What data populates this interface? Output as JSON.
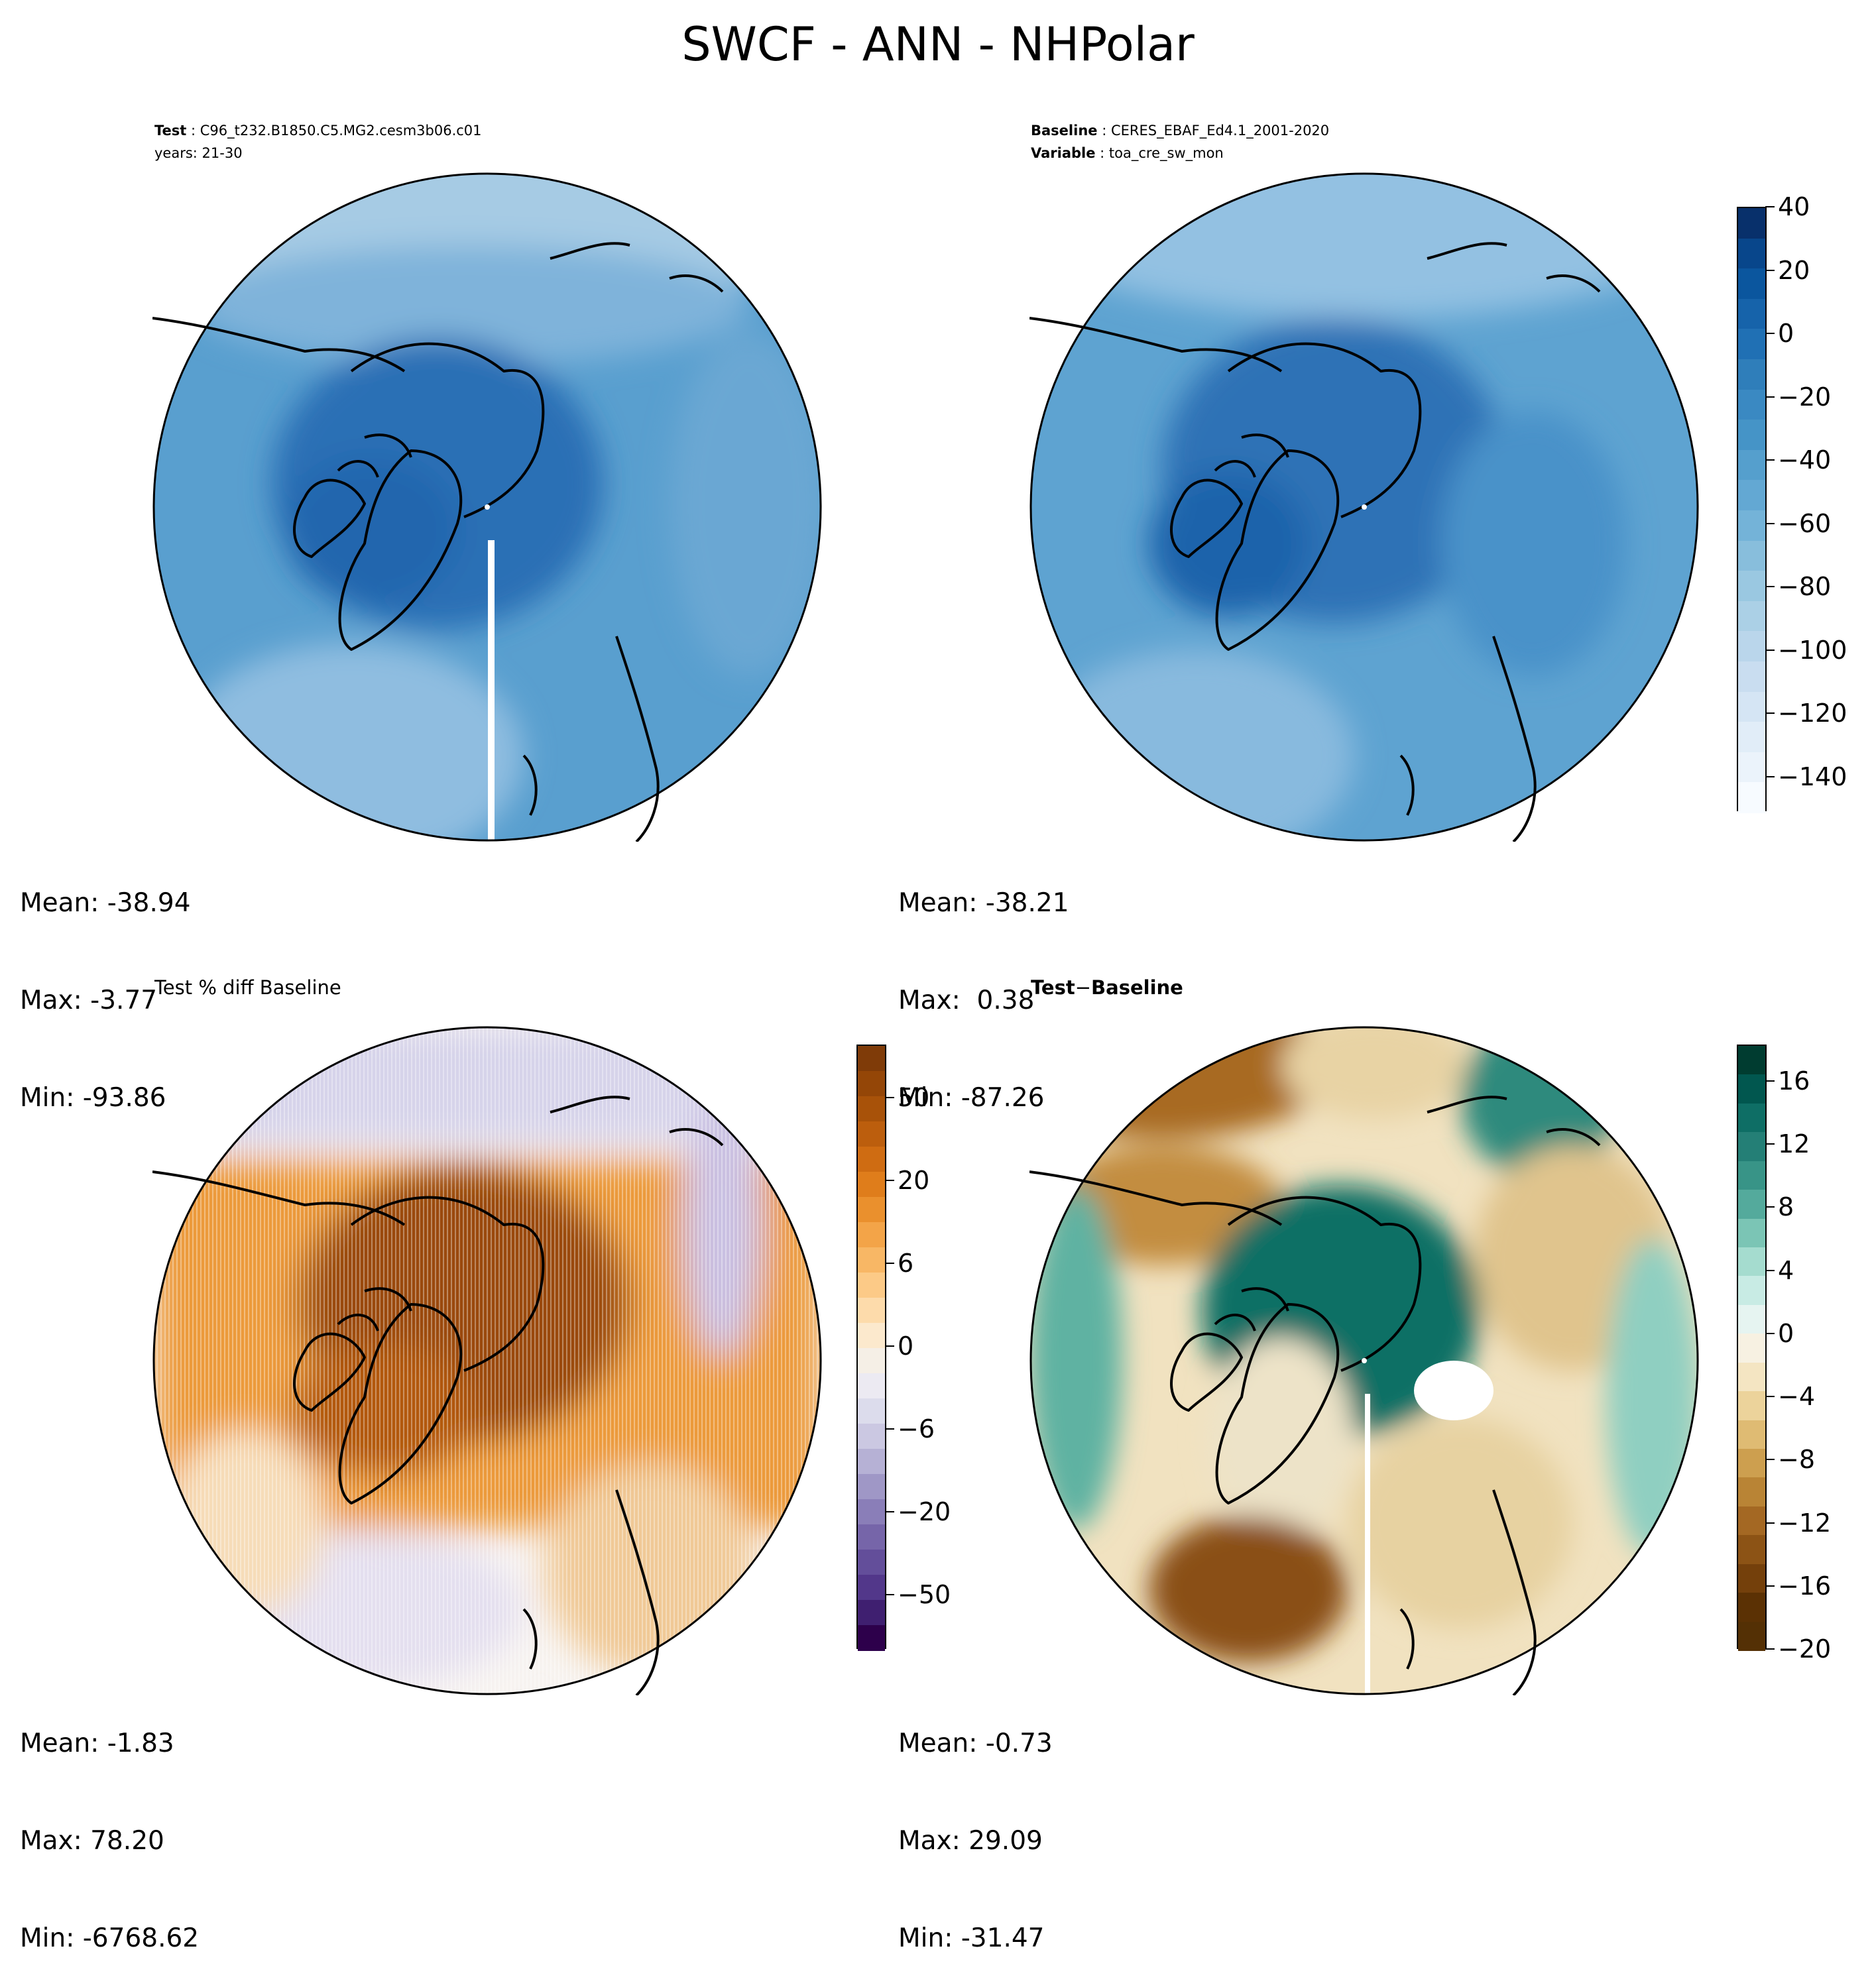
{
  "title": "SWCF - ANN - NHPolar",
  "panels": {
    "test": {
      "header_key1": "Test",
      "header_val1": "C96_t232.B1850.C5.MG2.cesm3b06.c01",
      "header_line2": "years: 21-30",
      "stats": {
        "mean": "Mean: -38.94",
        "max": "Max: -3.77",
        "min": "Min: -93.86"
      }
    },
    "baseline": {
      "header_key1": "Baseline",
      "header_val1": "CERES_EBAF_Ed4.1_2001-2020",
      "header_key2": "Variable",
      "header_val2": "toa_cre_sw_mon",
      "stats": {
        "mean": "Mean: -38.21",
        "max": "Max:  0.38",
        "min": "Min: -87.26"
      }
    },
    "pct_diff": {
      "title": "Test % diff Baseline",
      "stats": {
        "mean": "Mean: -1.83",
        "max": "Max: 78.20",
        "min": "Min: -6768.62"
      }
    },
    "diff": {
      "title_a": "Test",
      "title_sep": "−",
      "title_b": "Baseline",
      "stats": {
        "mean": "Mean: -0.73",
        "max": "Max: 29.09",
        "min": "Min: -31.47"
      }
    }
  },
  "colorbars": {
    "blues": {
      "ticks": [
        "40",
        "20",
        "0",
        "−20",
        "−40",
        "−60",
        "−80",
        "−100",
        "−120",
        "−140"
      ],
      "colors": [
        "#08306b",
        "#08468b",
        "#0b569e",
        "#1663aa",
        "#2070b4",
        "#2f7eba",
        "#3a89c2",
        "#4594c7",
        "#559fcd",
        "#63a8d3",
        "#74b3d8",
        "#88bedc",
        "#9ac8e1",
        "#abd0e6",
        "#bad6eb",
        "#c9ddf0",
        "#d5e5f4",
        "#e1edf8",
        "#ebf3fb",
        "#f7fbff"
      ]
    },
    "puor": {
      "ticks": [
        "50",
        "20",
        "6",
        "0",
        "−6",
        "−20",
        "−50"
      ],
      "colors": [
        "#7f3b08",
        "#944607",
        "#a85209",
        "#bc5e0d",
        "#cf6c12",
        "#df7d1b",
        "#ea902d",
        "#f3a448",
        "#f8b765",
        "#fcca87",
        "#fddbab",
        "#fce9cd",
        "#f5efe6",
        "#eceaf2",
        "#dcdcec",
        "#cbc8e2",
        "#b6b1d5",
        "#9f97c6",
        "#8a7eb8",
        "#7665a9",
        "#634e9a",
        "#52378a",
        "#3f1f70",
        "#2d004b"
      ]
    },
    "brbg": {
      "ticks": [
        "16",
        "12",
        "8",
        "4",
        "0",
        "−4",
        "−8",
        "−12",
        "−16",
        "−20"
      ],
      "colors": [
        "#003c30",
        "#01574f",
        "#0e6e65",
        "#247f76",
        "#389487",
        "#54aa9c",
        "#7bc5b5",
        "#a5dccf",
        "#c8ebe4",
        "#e6f4f1",
        "#f7f1e2",
        "#f4e5c2",
        "#ecd39b",
        "#dfbb73",
        "#cd9f4f",
        "#b98435",
        "#a46823",
        "#8c5315",
        "#74400b",
        "#5b3104",
        "#543005"
      ]
    }
  }
}
